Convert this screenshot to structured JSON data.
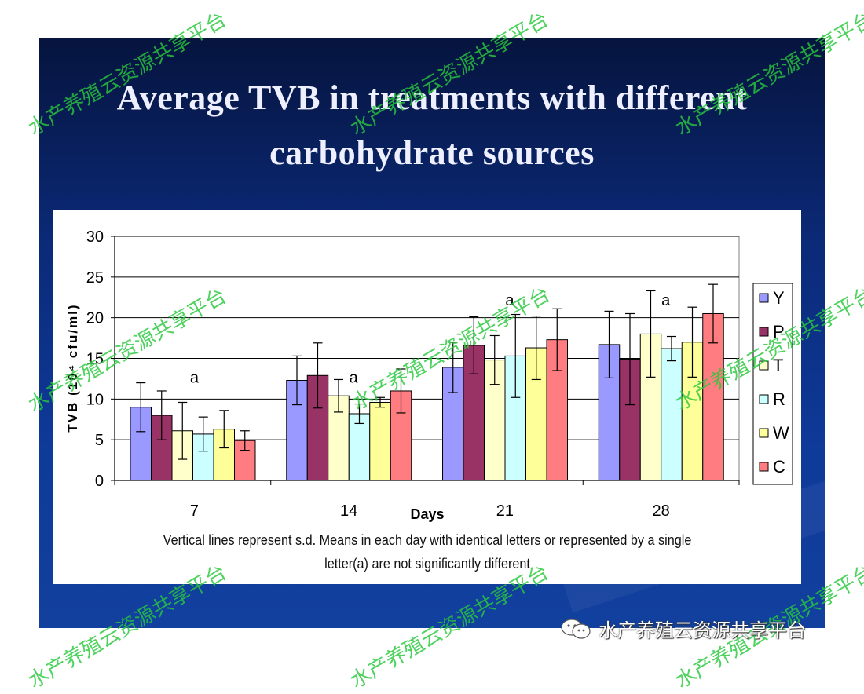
{
  "slide": {
    "title_line1": "Average TVB in treatments with different",
    "title_line2": "carbohydrate sources",
    "footnote_line1": "Vertical lines represent s.d. Means in each day with identical letters or represented by a single",
    "footnote_line2": "letter(a) are not significantly different"
  },
  "watermark": {
    "text": "水产养殖云资源共享平台",
    "brand_text": "水产养殖云资源共享平台"
  },
  "colors": {
    "slide_bg": "#0b2a78",
    "title_text": "#eef0ff",
    "watermark_green": "#28c83c"
  },
  "chart_data": {
    "type": "bar",
    "xlabel": "Days",
    "ylabel": "TVB (10⁴ cfu/ml)",
    "ylim": [
      0,
      30
    ],
    "yticks": [
      "0",
      "5",
      "10",
      "15",
      "20",
      "25",
      "30"
    ],
    "grid": true,
    "legend_position": "right",
    "categories": [
      "7",
      "14",
      "21",
      "28"
    ],
    "series": [
      {
        "name": "Y",
        "color": "#9999ff",
        "values": [
          9.0,
          12.3,
          13.9,
          16.7
        ],
        "sd": [
          3.0,
          3.0,
          3.1,
          4.1
        ]
      },
      {
        "name": "P",
        "color": "#993366",
        "values": [
          8.0,
          12.9,
          16.6,
          14.9
        ],
        "sd": [
          3.0,
          4.0,
          3.5,
          5.6
        ]
      },
      {
        "name": "T",
        "color": "#ffffcc",
        "values": [
          6.1,
          10.4,
          14.8,
          18.0
        ],
        "sd": [
          3.5,
          2.0,
          3.0,
          5.3
        ]
      },
      {
        "name": "R",
        "color": "#ccffff",
        "values": [
          5.7,
          8.2,
          15.3,
          16.2
        ],
        "sd": [
          2.1,
          1.2,
          5.1,
          1.5
        ]
      },
      {
        "name": "W",
        "color": "#ffff99",
        "values": [
          6.3,
          9.6,
          16.3,
          17.0
        ],
        "sd": [
          2.3,
          0.6,
          3.9,
          4.3
        ]
      },
      {
        "name": "C",
        "color": "#ff7c80",
        "values": [
          4.9,
          11.0,
          17.3,
          20.5
        ],
        "sd": [
          1.2,
          2.7,
          3.8,
          3.6
        ]
      }
    ],
    "annotations": [
      {
        "text": "a",
        "category": "7",
        "y": 12.0
      },
      {
        "text": "a",
        "category": "14",
        "y": 12.0
      },
      {
        "text": "a",
        "category": "21",
        "y": 21.5
      },
      {
        "text": "a",
        "category": "28",
        "y": 21.5
      }
    ]
  }
}
